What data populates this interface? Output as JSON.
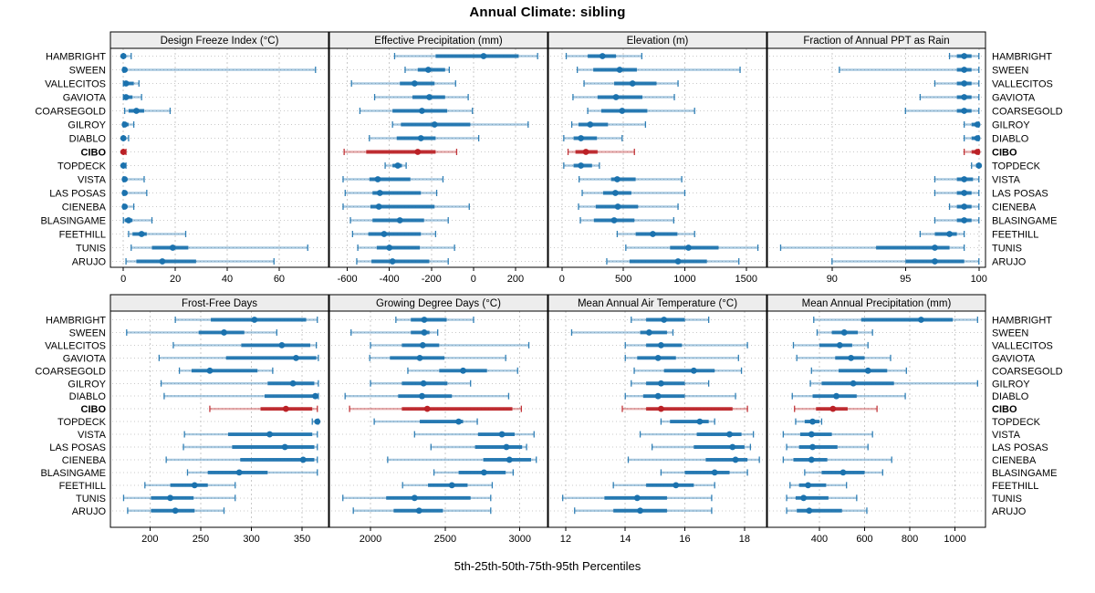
{
  "title": "Annual Climate: sibling",
  "footer": "5th-25th-50th-75th-95th Percentiles",
  "colors": {
    "series": "#1b72ae",
    "highlight": "#bb2126",
    "strip_bg": "#ededed",
    "grid": "#c9c9c9",
    "border": "#000000",
    "text": "#000000"
  },
  "chart_data": {
    "type": "percentile-dot-whisker-trellis",
    "percentiles": [
      5,
      25,
      50,
      75,
      95
    ],
    "legend_position": "none",
    "grid": "on",
    "sites": [
      "HAMBRIGHT",
      "SWEEN",
      "VALLECITOS",
      "GAVIOTA",
      "COARSEGOLD",
      "GILROY",
      "DIABLO",
      "CIBO",
      "TOPDECK",
      "VISTA",
      "LAS POSAS",
      "CIENEBA",
      "BLASINGAME",
      "FEETHILL",
      "TUNIS",
      "ARUJO"
    ],
    "highlight_site": "CIBO",
    "panels": [
      {
        "key": "design-freeze-index",
        "title": "Design Freeze Index (°C)",
        "row": 0,
        "col": 0,
        "xlim": [
          -5,
          79
        ],
        "ticks": [
          0,
          20,
          40,
          60
        ],
        "values": {
          "HAMBRIGHT": [
            0,
            0,
            0,
            1,
            3
          ],
          "SWEEN": [
            0,
            0,
            0.5,
            1,
            74
          ],
          "VALLECITOS": [
            0,
            0,
            1,
            4,
            6
          ],
          "GAVIOTA": [
            0,
            0,
            1,
            3.5,
            7
          ],
          "COARSEGOLD": [
            0.5,
            2,
            5,
            8,
            18
          ],
          "GILROY": [
            0,
            0,
            0.5,
            2,
            4
          ],
          "DIABLO": [
            0,
            0,
            0,
            0.5,
            2
          ],
          "CIBO": [
            0,
            0,
            0,
            0.5,
            1
          ],
          "TOPDECK": [
            0,
            0,
            0,
            0.5,
            1
          ],
          "VISTA": [
            0,
            0,
            0.5,
            1,
            8
          ],
          "LAS POSAS": [
            0,
            0,
            0.5,
            1,
            9
          ],
          "CIENEBA": [
            0,
            0,
            0.5,
            1,
            4
          ],
          "BLASINGAME": [
            0,
            0.5,
            2,
            3.5,
            11
          ],
          "FEETHILL": [
            2,
            3.5,
            7,
            9,
            24
          ],
          "TUNIS": [
            3,
            11,
            19,
            25,
            71
          ],
          "ARUJO": [
            1,
            5,
            15,
            28,
            58
          ]
        }
      },
      {
        "key": "effective-precipitation",
        "title": "Effective Precipitation (mm)",
        "row": 0,
        "col": 1,
        "xlim": [
          -685,
          352
        ],
        "ticks": [
          -600,
          -400,
          -200,
          0,
          200
        ],
        "values": {
          "HAMBRIGHT": [
            -375,
            -180,
            48,
            215,
            305
          ],
          "SWEEN": [
            -325,
            -265,
            -215,
            -135,
            -115
          ],
          "VALLECITOS": [
            -580,
            -350,
            -280,
            -185,
            -85
          ],
          "GAVIOTA": [
            -470,
            -290,
            -210,
            -135,
            -25
          ],
          "COARSEGOLD": [
            -540,
            -385,
            -245,
            -125,
            -5
          ],
          "GILROY": [
            -385,
            -345,
            -185,
            -15,
            260
          ],
          "DIABLO": [
            -495,
            -365,
            -250,
            -180,
            25
          ],
          "CIBO": [
            -615,
            -510,
            -265,
            -180,
            -80
          ],
          "TOPDECK": [
            -420,
            -385,
            -360,
            -340,
            -320
          ],
          "VISTA": [
            -620,
            -495,
            -455,
            -300,
            -145
          ],
          "LAS POSAS": [
            -610,
            -480,
            -445,
            -250,
            -175
          ],
          "CIENEBA": [
            -620,
            -490,
            -450,
            -185,
            -20
          ],
          "BLASINGAME": [
            -585,
            -480,
            -350,
            -235,
            -120
          ],
          "FEETHILL": [
            -575,
            -500,
            -425,
            -250,
            -180
          ],
          "TUNIS": [
            -550,
            -460,
            -400,
            -255,
            -90
          ],
          "ARUJO": [
            -555,
            -485,
            -385,
            -210,
            -120
          ]
        }
      },
      {
        "key": "elevation",
        "title": "Elevation (m)",
        "row": 0,
        "col": 2,
        "xlim": [
          -110,
          1665
        ],
        "ticks": [
          0,
          500,
          1000,
          1500
        ],
        "values": {
          "HAMBRIGHT": [
            35,
            210,
            330,
            440,
            650
          ],
          "SWEEN": [
            125,
            255,
            470,
            610,
            1450
          ],
          "VALLECITOS": [
            180,
            425,
            575,
            770,
            945
          ],
          "GAVIOTA": [
            90,
            290,
            440,
            655,
            915
          ],
          "COARSEGOLD": [
            210,
            320,
            490,
            695,
            1080
          ],
          "GILROY": [
            80,
            135,
            230,
            375,
            680
          ],
          "DIABLO": [
            15,
            95,
            155,
            285,
            490
          ],
          "CIBO": [
            50,
            110,
            195,
            290,
            590
          ],
          "TOPDECK": [
            15,
            95,
            155,
            245,
            305
          ],
          "VISTA": [
            140,
            400,
            450,
            600,
            975
          ],
          "LAS POSAS": [
            165,
            335,
            435,
            565,
            1000
          ],
          "CIENEBA": [
            135,
            275,
            455,
            620,
            945
          ],
          "BLASINGAME": [
            150,
            260,
            425,
            590,
            910
          ],
          "FEETHILL": [
            450,
            600,
            740,
            940,
            1080
          ],
          "TUNIS": [
            520,
            880,
            1030,
            1275,
            1595
          ],
          "ARUJO": [
            365,
            550,
            945,
            1180,
            1440
          ]
        }
      },
      {
        "key": "fraction-ppt-rain",
        "title": "Fraction of Annual PPT as Rain",
        "row": 0,
        "col": 3,
        "xlim": [
          85.6,
          100.45
        ],
        "ticks": [
          90,
          95,
          100
        ],
        "values": {
          "HAMBRIGHT": [
            98,
            98.5,
            99,
            99.5,
            100
          ],
          "SWEEN": [
            90.5,
            98.5,
            99,
            99.5,
            100
          ],
          "VALLECITOS": [
            97,
            98.5,
            99,
            99.5,
            100
          ],
          "GAVIOTA": [
            96,
            98.5,
            99,
            99.5,
            100
          ],
          "COARSEGOLD": [
            95,
            98.5,
            99,
            99.5,
            100
          ],
          "GILROY": [
            99,
            99.5,
            99.9,
            100,
            100
          ],
          "DIABLO": [
            99,
            99.5,
            99.9,
            100,
            100
          ],
          "CIBO": [
            99,
            99.5,
            99.9,
            100,
            100
          ],
          "TOPDECK": [
            99.5,
            99.8,
            100,
            100,
            100
          ],
          "VISTA": [
            97,
            98.5,
            99,
            99.6,
            100
          ],
          "LAS POSAS": [
            97,
            98.5,
            99,
            99.5,
            100
          ],
          "CIENEBA": [
            98,
            98.5,
            99,
            99.5,
            100
          ],
          "BLASINGAME": [
            97,
            98.5,
            99,
            99.5,
            100
          ],
          "FEETHILL": [
            96,
            97,
            98,
            98.5,
            99
          ],
          "TUNIS": [
            86.5,
            93,
            97,
            98,
            99
          ],
          "ARUJO": [
            90,
            95,
            97,
            99,
            100
          ]
        }
      },
      {
        "key": "frost-free-days",
        "title": "Frost-Free Days",
        "row": 1,
        "col": 0,
        "xlim": [
          161,
          376
        ],
        "ticks": [
          200,
          250,
          300,
          350
        ],
        "values": {
          "HAMBRIGHT": [
            225,
            260,
            303,
            354,
            365
          ],
          "SWEEN": [
            177,
            248,
            273,
            293,
            325
          ],
          "VALLECITOS": [
            223,
            290,
            330,
            358,
            364
          ],
          "GAVIOTA": [
            209,
            275,
            344,
            364,
            366
          ],
          "COARSEGOLD": [
            229,
            241,
            259,
            306,
            321
          ],
          "GILROY": [
            211,
            316,
            341,
            362,
            366
          ],
          "DIABLO": [
            214,
            313,
            363,
            365,
            366
          ],
          "CIBO": [
            259,
            309,
            334,
            360,
            365
          ],
          "TOPDECK": [
            360,
            363,
            365,
            366,
            366
          ],
          "VISTA": [
            234,
            277,
            318,
            360,
            365
          ],
          "LAS POSAS": [
            233,
            281,
            333,
            362,
            365
          ],
          "CIENEBA": [
            216,
            289,
            351,
            362,
            365
          ],
          "BLASINGAME": [
            237,
            257,
            288,
            316,
            365
          ],
          "FEETHILL": [
            195,
            220,
            244,
            257,
            284
          ],
          "TUNIS": [
            174,
            201,
            220,
            243,
            284
          ],
          "ARUJO": [
            178,
            201,
            225,
            244,
            273
          ]
        }
      },
      {
        "key": "growing-degree-days",
        "title": "Growing Degree Days (°C)",
        "row": 1,
        "col": 1,
        "xlim": [
          1725,
          3185
        ],
        "ticks": [
          2000,
          2500,
          3000
        ],
        "values": {
          "HAMBRIGHT": [
            2170,
            2270,
            2360,
            2510,
            2690
          ],
          "SWEEN": [
            1870,
            2270,
            2360,
            2395,
            2450
          ],
          "VALLECITOS": [
            2000,
            2210,
            2350,
            2460,
            3060
          ],
          "GAVIOTA": [
            1995,
            2130,
            2330,
            2495,
            2905
          ],
          "COARSEGOLD": [
            2250,
            2460,
            2620,
            2780,
            2985
          ],
          "GILROY": [
            2000,
            2210,
            2355,
            2515,
            2670
          ],
          "DIABLO": [
            1830,
            2185,
            2345,
            2545,
            2925
          ],
          "CIBO": [
            1860,
            2210,
            2380,
            2950,
            3010
          ],
          "TOPDECK": [
            2025,
            2330,
            2590,
            2620,
            2715
          ],
          "VISTA": [
            2295,
            2720,
            2880,
            2965,
            3095
          ],
          "LAS POSAS": [
            2405,
            2700,
            2910,
            3015,
            3045
          ],
          "CIENEBA": [
            2115,
            2755,
            2930,
            3075,
            3110
          ],
          "BLASINGAME": [
            2425,
            2590,
            2760,
            2905,
            2955
          ],
          "FEETHILL": [
            2215,
            2385,
            2545,
            2650,
            2815
          ],
          "TUNIS": [
            1815,
            2105,
            2295,
            2670,
            2805
          ],
          "ARUJO": [
            1885,
            2155,
            2325,
            2485,
            2805
          ]
        }
      },
      {
        "key": "mean-annual-air-temperature",
        "title": "Mean Annual Air Temperature (°C)",
        "row": 1,
        "col": 2,
        "xlim": [
          11.42,
          18.74
        ],
        "ticks": [
          12,
          14,
          16,
          18
        ],
        "values": {
          "HAMBRIGHT": [
            14.2,
            14.7,
            15.3,
            16.0,
            16.8
          ],
          "SWEEN": [
            12.2,
            14.5,
            14.8,
            15.4,
            15.6
          ],
          "VALLECITOS": [
            14.0,
            14.7,
            15.2,
            15.9,
            18.1
          ],
          "GAVIOTA": [
            14.0,
            14.4,
            15.1,
            15.7,
            17.8
          ],
          "COARSEGOLD": [
            14.3,
            15.3,
            16.3,
            17.0,
            17.9
          ],
          "GILROY": [
            14.2,
            14.7,
            15.2,
            16.0,
            16.8
          ],
          "DIABLO": [
            14.0,
            14.6,
            15.1,
            16.0,
            17.7
          ],
          "CIBO": [
            13.9,
            14.7,
            15.2,
            17.6,
            18.1
          ],
          "TOPDECK": [
            15.2,
            15.5,
            16.5,
            16.8,
            17.0
          ],
          "VISTA": [
            14.5,
            16.4,
            17.5,
            17.9,
            18.3
          ],
          "LAS POSAS": [
            14.9,
            16.3,
            17.6,
            18.0,
            18.2
          ],
          "CIENEBA": [
            14.1,
            16.7,
            17.7,
            18.1,
            18.5
          ],
          "BLASINGAME": [
            15.2,
            16.0,
            17.0,
            17.5,
            18.1
          ],
          "FEETHILL": [
            13.6,
            14.7,
            15.7,
            16.3,
            17.0
          ],
          "TUNIS": [
            11.9,
            13.3,
            14.4,
            15.4,
            16.9
          ],
          "ARUJO": [
            12.3,
            13.6,
            14.5,
            15.4,
            16.9
          ]
        }
      },
      {
        "key": "mean-annual-precipitation",
        "title": "Mean Annual Precipitation (mm)",
        "row": 1,
        "col": 3,
        "xlim": [
          170,
          1135
        ],
        "ticks": [
          400,
          600,
          800,
          1000
        ],
        "values": {
          "HAMBRIGHT": [
            375,
            585,
            850,
            990,
            1100
          ],
          "SWEEN": [
            390,
            455,
            510,
            570,
            635
          ],
          "VALLECITOS": [
            285,
            400,
            490,
            545,
            615
          ],
          "GAVIOTA": [
            300,
            470,
            540,
            600,
            715
          ],
          "COARSEGOLD": [
            365,
            485,
            615,
            700,
            785
          ],
          "GILROY": [
            360,
            410,
            550,
            730,
            1100
          ],
          "DIABLO": [
            280,
            370,
            475,
            565,
            780
          ],
          "CIBO": [
            290,
            385,
            460,
            525,
            655
          ],
          "TOPDECK": [
            295,
            335,
            370,
            400,
            410
          ],
          "VISTA": [
            240,
            315,
            365,
            455,
            635
          ],
          "LAS POSAS": [
            255,
            310,
            370,
            480,
            615
          ],
          "CIENEBA": [
            240,
            285,
            365,
            435,
            720
          ],
          "BLASINGAME": [
            335,
            410,
            505,
            600,
            680
          ],
          "FEETHILL": [
            270,
            310,
            350,
            430,
            520
          ],
          "TUNIS": [
            255,
            295,
            330,
            440,
            565
          ],
          "ARUJO": [
            255,
            300,
            355,
            500,
            610
          ]
        }
      }
    ]
  }
}
